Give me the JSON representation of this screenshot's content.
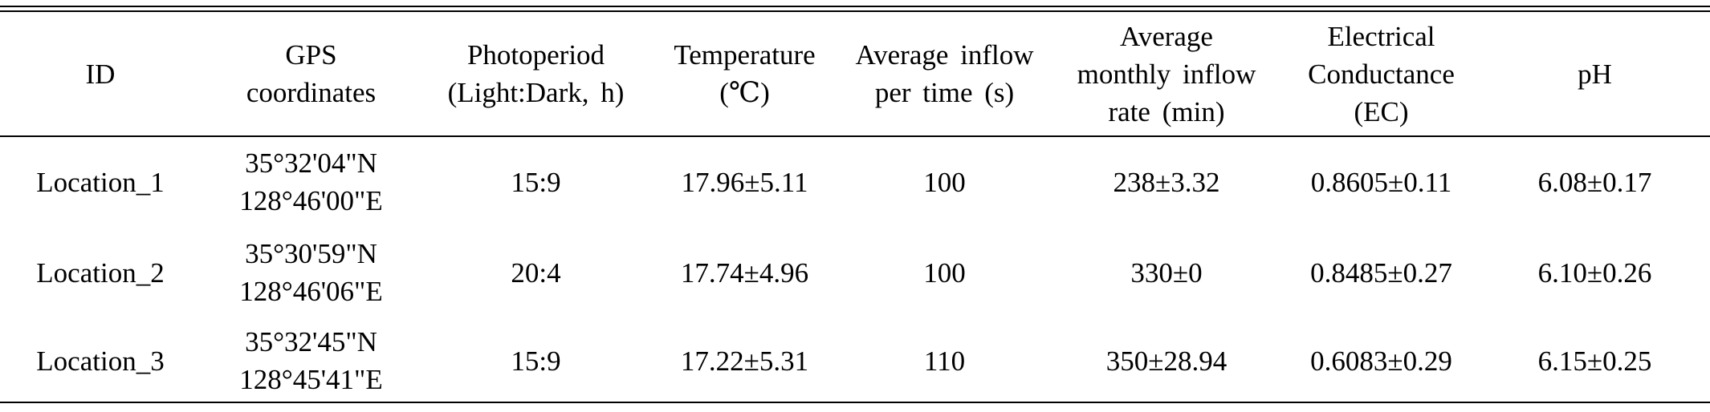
{
  "table": {
    "headers": [
      {
        "key": "id",
        "lines": [
          "ID"
        ]
      },
      {
        "key": "gps",
        "lines": [
          "GPS",
          "coordinates"
        ]
      },
      {
        "key": "photoperiod",
        "lines": [
          "Photoperiod",
          "(Light:Dark, h)"
        ]
      },
      {
        "key": "temperature",
        "lines": [
          "Temperature",
          "(℃)"
        ]
      },
      {
        "key": "avg_inflow_time",
        "lines": [
          "Average inflow",
          "per time (s)"
        ]
      },
      {
        "key": "avg_monthly_inflow",
        "lines": [
          "Average",
          "monthly inflow",
          "rate (min)"
        ]
      },
      {
        "key": "ec",
        "lines": [
          "Electrical",
          "Conductance",
          "(EC)"
        ]
      },
      {
        "key": "ph",
        "lines": [
          "pH"
        ]
      }
    ],
    "rows": [
      {
        "id": "Location_1",
        "gps_lat": "35°32'04\"N",
        "gps_lon": "128°46'00\"E",
        "photoperiod": "15:9",
        "temperature": "17.96±5.11",
        "avg_inflow_time": "100",
        "avg_monthly_inflow": "238±3.32",
        "ec": "0.8605±0.11",
        "ph": "6.08±0.17"
      },
      {
        "id": "Location_2",
        "gps_lat": "35°30'59\"N",
        "gps_lon": "128°46'06\"E",
        "photoperiod": "20:4",
        "temperature": "17.74±4.96",
        "avg_inflow_time": "100",
        "avg_monthly_inflow": "330±0",
        "ec": "0.8485±0.27",
        "ph": "6.10±0.26"
      },
      {
        "id": "Location_3",
        "gps_lat": "35°32'45\"N",
        "gps_lon": "128°45'41\"E",
        "photoperiod": "15:9",
        "temperature": "17.22±5.31",
        "avg_inflow_time": "110",
        "avg_monthly_inflow": "350±28.94",
        "ec": "0.6083±0.29",
        "ph": "6.15±0.25"
      }
    ]
  }
}
